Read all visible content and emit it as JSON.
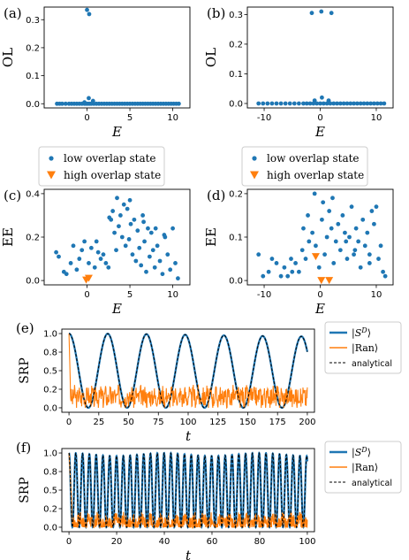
{
  "colors": {
    "blue": "#1f77b4",
    "orange": "#ff7f0e",
    "analytical": "#000000"
  },
  "chart_data": [
    {
      "id": "a",
      "type": "scatter",
      "panel_label": "(a)",
      "xlabel": "E",
      "ylabel": "OL",
      "xlim": [
        -5,
        12
      ],
      "ylim": [
        -0.015,
        0.345
      ],
      "xticks": [
        0,
        5,
        10
      ],
      "yticks": [
        0.0,
        0.1,
        0.2,
        0.3
      ],
      "ytick_labels": [
        "0.0",
        "0.1",
        "0.2",
        "0.3"
      ],
      "series": [
        {
          "color": "#1f77b4",
          "x": [
            -3.5,
            -3.2,
            -2.9,
            -2.5,
            -2.1,
            -1.8,
            -1.5,
            -1.2,
            -0.9,
            -0.6,
            -0.3,
            -0.1,
            0.1,
            0.3,
            0.5,
            0.8,
            1.1,
            1.4,
            1.7,
            2.0,
            2.3,
            2.6,
            2.9,
            3.2,
            3.5,
            3.8,
            4.1,
            4.4,
            4.7,
            5.0,
            5.3,
            5.6,
            5.9,
            6.2,
            6.5,
            6.8,
            7.1,
            7.4,
            7.7,
            8.0,
            8.3,
            8.6,
            8.9,
            9.2,
            9.5,
            9.8,
            10.1,
            10.4,
            10.7,
            0.2,
            0.7,
            -0.3,
            0.0,
            0.25
          ],
          "y": [
            0.0,
            0.0,
            0.0,
            0.0,
            0.0,
            0.0,
            0.0,
            0.0,
            0.0,
            0.0,
            0.0,
            0.0,
            0.0,
            0.0,
            0.0,
            0.0,
            0.0,
            0.0,
            0.0,
            0.0,
            0.0,
            0.0,
            0.0,
            0.0,
            0.0,
            0.0,
            0.0,
            0.0,
            0.0,
            0.0,
            0.0,
            0.0,
            0.0,
            0.0,
            0.0,
            0.0,
            0.0,
            0.0,
            0.0,
            0.0,
            0.0,
            0.0,
            0.0,
            0.0,
            0.0,
            0.0,
            0.0,
            0.0,
            0.0,
            0.02,
            0.01,
            0.005,
            0.335,
            0.32
          ]
        }
      ]
    },
    {
      "id": "b",
      "type": "scatter",
      "panel_label": "(b)",
      "xlabel": "E",
      "ylabel": "OL",
      "xlim": [
        -13,
        13
      ],
      "ylim": [
        -0.015,
        0.325
      ],
      "xticks": [
        -10,
        0,
        10
      ],
      "yticks": [
        0.0,
        0.1,
        0.2,
        0.3
      ],
      "ytick_labels": [
        "0.0",
        "0.1",
        "0.2",
        "0.3"
      ],
      "series": [
        {
          "color": "#1f77b4",
          "x": [
            -11,
            -10.2,
            -9.4,
            -8.6,
            -7.8,
            -7.0,
            -6.2,
            -5.4,
            -4.6,
            -3.8,
            -3.0,
            -2.4,
            -1.8,
            -1.2,
            -0.6,
            0.0,
            0.6,
            1.2,
            1.8,
            2.4,
            3.0,
            3.6,
            4.2,
            4.8,
            5.4,
            6.0,
            6.6,
            7.2,
            7.8,
            8.4,
            9.0,
            9.6,
            10.2,
            10.8,
            11.4,
            -1.0,
            0.3,
            1.5,
            -1.5,
            0.2,
            2.0
          ],
          "y": [
            0.0,
            0.0,
            0.0,
            0.0,
            0.0,
            0.0,
            0.0,
            0.0,
            0.0,
            0.0,
            0.0,
            0.0,
            0.0,
            0.0,
            0.0,
            0.0,
            0.0,
            0.0,
            0.0,
            0.0,
            0.0,
            0.0,
            0.0,
            0.0,
            0.0,
            0.0,
            0.0,
            0.0,
            0.0,
            0.0,
            0.0,
            0.0,
            0.0,
            0.0,
            0.0,
            0.01,
            0.02,
            0.01,
            0.305,
            0.31,
            0.305
          ]
        }
      ]
    },
    {
      "id": "c",
      "type": "scatter",
      "panel_label": "(c)",
      "xlabel": "E",
      "ylabel": "EE",
      "xlim": [
        -5,
        12
      ],
      "ylim": [
        -0.02,
        0.42
      ],
      "xticks": [
        0,
        5,
        10
      ],
      "yticks": [
        0.0,
        0.2,
        0.4
      ],
      "ytick_labels": [
        "0.0",
        "0.2",
        "0.4"
      ],
      "legend": [
        "low overlap state",
        "high overlap state"
      ],
      "legend_position": "top",
      "series": [
        {
          "name": "low overlap state",
          "color": "#1f77b4",
          "marker": "circle",
          "x": [
            -3.6,
            -3.3,
            -2.7,
            -2.4,
            -1.9,
            -1.6,
            -1.2,
            -0.9,
            -0.6,
            -0.3,
            0.2,
            0.5,
            0.9,
            1.3,
            1.6,
            1.9,
            2.2,
            2.5,
            2.8,
            3.0,
            3.2,
            3.5,
            3.7,
            3.9,
            4.1,
            4.3,
            4.5,
            4.7,
            4.9,
            5.1,
            5.3,
            5.5,
            5.7,
            5.9,
            6.1,
            6.3,
            6.5,
            6.7,
            6.9,
            7.1,
            7.3,
            7.5,
            7.7,
            7.9,
            8.2,
            8.5,
            8.8,
            9.1,
            9.4,
            9.7,
            10.0,
            10.3,
            10.6,
            1.1,
            3.4,
            6.6,
            9.0,
            2.6,
            5.0,
            8.0
          ],
          "y": [
            0.13,
            0.11,
            0.04,
            0.03,
            0.08,
            0.16,
            0.05,
            0.1,
            0.14,
            0.18,
            0.08,
            0.15,
            0.06,
            0.13,
            0.1,
            0.12,
            0.08,
            0.06,
            0.28,
            0.32,
            0.22,
            0.38,
            0.25,
            0.3,
            0.2,
            0.35,
            0.16,
            0.33,
            0.19,
            0.26,
            0.12,
            0.28,
            0.09,
            0.23,
            0.15,
            0.07,
            0.3,
            0.18,
            0.04,
            0.24,
            0.11,
            0.22,
            0.14,
            0.06,
            0.16,
            0.09,
            0.03,
            0.2,
            0.12,
            0.05,
            0.24,
            0.08,
            0.01,
            0.18,
            0.14,
            0.27,
            0.21,
            0.29,
            0.37,
            0.24
          ]
        },
        {
          "name": "high overlap state",
          "color": "#ff7f0e",
          "marker": "triangle-down",
          "x": [
            -0.1,
            0.2
          ],
          "y": [
            0.002,
            0.01
          ]
        }
      ]
    },
    {
      "id": "d",
      "type": "scatter",
      "panel_label": "(d)",
      "xlabel": "E",
      "ylabel": "EE",
      "xlim": [
        -13,
        13
      ],
      "ylim": [
        -0.01,
        0.21
      ],
      "xticks": [
        -10,
        0,
        10
      ],
      "yticks": [
        0.0,
        0.1,
        0.2
      ],
      "ytick_labels": [
        "0.0",
        "0.1",
        "0.2"
      ],
      "legend": [
        "low overlap state",
        "high overlap state"
      ],
      "legend_position": "top",
      "series": [
        {
          "name": "low overlap state",
          "color": "#1f77b4",
          "marker": "circle",
          "x": [
            -11,
            -10.2,
            -9.2,
            -8.6,
            -7.8,
            -7.0,
            -6.4,
            -5.8,
            -5.0,
            -4.4,
            -3.8,
            -3.2,
            -2.6,
            -2.0,
            -1.4,
            -0.8,
            -0.2,
            0.3,
            0.8,
            1.2,
            1.6,
            2.0,
            2.4,
            2.8,
            3.2,
            3.6,
            4.0,
            4.4,
            4.8,
            5.2,
            5.6,
            6.0,
            6.4,
            6.8,
            7.2,
            7.6,
            8.0,
            8.4,
            8.8,
            9.2,
            9.6,
            10.0,
            10.4,
            10.8,
            11.2,
            11.6,
            -3.0,
            -1.0,
            0.5,
            2.2,
            4.6,
            6.2,
            8.8,
            -5.2,
            -2.2
          ],
          "y": [
            0.06,
            0.01,
            0.02,
            0.05,
            0.04,
            0.01,
            0.03,
            0.01,
            0.02,
            0.04,
            0.02,
            0.07,
            0.05,
            0.09,
            0.11,
            0.08,
            0.03,
            0.14,
            0.06,
            0.1,
            0.16,
            0.12,
            0.04,
            0.09,
            0.13,
            0.07,
            0.15,
            0.11,
            0.05,
            0.1,
            0.17,
            0.06,
            0.12,
            0.09,
            0.03,
            0.14,
            0.08,
            0.11,
            0.06,
            0.16,
            0.13,
            0.17,
            0.05,
            0.08,
            0.02,
            0.01,
            0.12,
            0.2,
            0.18,
            0.19,
            0.09,
            0.07,
            0.04,
            0.05,
            0.15
          ]
        },
        {
          "name": "high overlap state",
          "color": "#ff7f0e",
          "marker": "triangle-down",
          "x": [
            -0.8,
            0.2,
            1.6
          ],
          "y": [
            0.055,
            0.0,
            0.0
          ]
        }
      ]
    },
    {
      "id": "e",
      "type": "line",
      "panel_label": "(e)",
      "xlabel": "t",
      "ylabel": "SRP",
      "xlim": [
        -6,
        206
      ],
      "ylim": [
        -0.06,
        1.06
      ],
      "xticks": [
        0,
        25,
        50,
        75,
        100,
        125,
        150,
        175,
        200
      ],
      "yticks": [
        0.0,
        0.25,
        0.5,
        0.75,
        1.0
      ],
      "ytick_labels": [
        "0.0",
        "0.2",
        "0.5",
        "0.8",
        "1.0"
      ],
      "period": 32.5,
      "legend": [
        "|S^D⟩",
        "|Ran⟩",
        "analytical"
      ],
      "legend_position": "right-outside",
      "series": [
        {
          "name": "|S^D⟩",
          "color": "#1f77b4",
          "style": "solid-thick"
        },
        {
          "name": "|Ran⟩",
          "color": "#ff7f0e",
          "style": "solid-noisy",
          "mean": 0.15,
          "spread": 0.13
        },
        {
          "name": "analytical",
          "color": "#000000",
          "style": "dashed"
        }
      ]
    },
    {
      "id": "f",
      "type": "line",
      "panel_label": "(f)",
      "xlabel": "t",
      "ylabel": "SRP",
      "xlim": [
        -3,
        103
      ],
      "ylim": [
        -0.06,
        1.06
      ],
      "xticks": [
        0,
        20,
        40,
        60,
        80,
        100
      ],
      "yticks": [
        0.0,
        0.25,
        0.5,
        0.75,
        1.0
      ],
      "ytick_labels": [
        "0.0",
        "0.2",
        "0.5",
        "0.8",
        "1.0"
      ],
      "period": 2.85,
      "legend": [
        "|S^D⟩",
        "|Ran⟩",
        "analytical"
      ],
      "legend_position": "right-outside",
      "series": [
        {
          "name": "|S^D⟩",
          "color": "#1f77b4",
          "style": "solid-thick"
        },
        {
          "name": "|Ran⟩",
          "color": "#ff7f0e",
          "style": "solid-noisy",
          "mean": 0.07,
          "spread": 0.1
        },
        {
          "name": "analytical",
          "color": "#000000",
          "style": "dashed"
        }
      ]
    }
  ]
}
